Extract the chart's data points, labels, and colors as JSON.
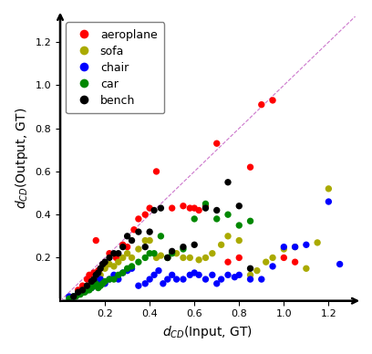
{
  "title": "",
  "xlabel": "$d_{CD}$(Input, GT)",
  "ylabel": "$d_{CD}$(Output, GT)",
  "xlim": [
    0,
    1.32
  ],
  "ylim": [
    0,
    1.32
  ],
  "xticks": [
    0.2,
    0.4,
    0.6,
    0.8,
    1.0,
    1.2
  ],
  "yticks": [
    0.2,
    0.4,
    0.6,
    0.8,
    1.0,
    1.2
  ],
  "diagonal_color": "#cc77cc",
  "categories": [
    "aeroplane",
    "sofa",
    "chair",
    "car",
    "bench"
  ],
  "colors": [
    "#ff0000",
    "#aaaa00",
    "#0000ff",
    "#008800",
    "#000000"
  ],
  "aeroplane_x": [
    0.08,
    0.1,
    0.12,
    0.13,
    0.15,
    0.16,
    0.17,
    0.18,
    0.2,
    0.22,
    0.25,
    0.28,
    0.3,
    0.33,
    0.35,
    0.38,
    0.4,
    0.43,
    0.5,
    0.55,
    0.58,
    0.6,
    0.62,
    0.65,
    0.7,
    0.75,
    0.8,
    0.85,
    0.9,
    0.95,
    1.0,
    1.05
  ],
  "aeroplane_y": [
    0.05,
    0.07,
    0.1,
    0.12,
    0.13,
    0.28,
    0.14,
    0.15,
    0.16,
    0.22,
    0.2,
    0.26,
    0.25,
    0.33,
    0.38,
    0.4,
    0.43,
    0.6,
    0.43,
    0.44,
    0.43,
    0.43,
    0.42,
    0.44,
    0.73,
    0.18,
    0.2,
    0.62,
    0.91,
    0.93,
    0.2,
    0.18
  ],
  "sofa_x": [
    0.08,
    0.1,
    0.12,
    0.14,
    0.16,
    0.18,
    0.2,
    0.22,
    0.24,
    0.26,
    0.28,
    0.3,
    0.32,
    0.35,
    0.38,
    0.4,
    0.43,
    0.45,
    0.48,
    0.52,
    0.55,
    0.58,
    0.62,
    0.65,
    0.68,
    0.72,
    0.75,
    0.8,
    0.85,
    0.88,
    0.92,
    0.95,
    1.0,
    1.05,
    1.1,
    1.15,
    1.2
  ],
  "sofa_y": [
    0.03,
    0.04,
    0.06,
    0.08,
    0.1,
    0.12,
    0.15,
    0.17,
    0.16,
    0.18,
    0.2,
    0.22,
    0.2,
    0.24,
    0.28,
    0.28,
    0.2,
    0.21,
    0.2,
    0.22,
    0.2,
    0.2,
    0.19,
    0.2,
    0.22,
    0.26,
    0.3,
    0.28,
    0.12,
    0.14,
    0.18,
    0.2,
    0.24,
    0.25,
    0.15,
    0.27,
    0.52
  ],
  "chair_x": [
    0.04,
    0.06,
    0.08,
    0.1,
    0.12,
    0.14,
    0.15,
    0.16,
    0.17,
    0.18,
    0.2,
    0.22,
    0.24,
    0.26,
    0.28,
    0.3,
    0.32,
    0.35,
    0.38,
    0.4,
    0.42,
    0.44,
    0.46,
    0.48,
    0.5,
    0.52,
    0.55,
    0.58,
    0.6,
    0.62,
    0.65,
    0.68,
    0.7,
    0.72,
    0.75,
    0.78,
    0.8,
    0.85,
    0.9,
    0.95,
    1.0,
    1.05,
    1.1,
    1.2,
    1.25
  ],
  "chair_y": [
    0.02,
    0.02,
    0.03,
    0.04,
    0.05,
    0.06,
    0.07,
    0.08,
    0.09,
    0.1,
    0.08,
    0.1,
    0.12,
    0.1,
    0.13,
    0.14,
    0.15,
    0.07,
    0.08,
    0.1,
    0.12,
    0.14,
    0.08,
    0.1,
    0.12,
    0.1,
    0.1,
    0.12,
    0.13,
    0.12,
    0.1,
    0.12,
    0.08,
    0.1,
    0.12,
    0.11,
    0.12,
    0.1,
    0.1,
    0.16,
    0.25,
    0.25,
    0.26,
    0.46,
    0.17
  ],
  "car_x": [
    0.04,
    0.06,
    0.07,
    0.08,
    0.09,
    0.1,
    0.11,
    0.12,
    0.13,
    0.14,
    0.15,
    0.16,
    0.17,
    0.18,
    0.19,
    0.2,
    0.22,
    0.24,
    0.26,
    0.28,
    0.3,
    0.32,
    0.35,
    0.38,
    0.4,
    0.42,
    0.45,
    0.48,
    0.5,
    0.55,
    0.6,
    0.65,
    0.7,
    0.75,
    0.8,
    0.85
  ],
  "car_y": [
    0.01,
    0.02,
    0.02,
    0.03,
    0.03,
    0.04,
    0.04,
    0.05,
    0.05,
    0.06,
    0.07,
    0.08,
    0.06,
    0.07,
    0.08,
    0.09,
    0.1,
    0.1,
    0.12,
    0.13,
    0.15,
    0.16,
    0.18,
    0.2,
    0.22,
    0.22,
    0.3,
    0.2,
    0.22,
    0.24,
    0.38,
    0.45,
    0.38,
    0.4,
    0.35,
    0.37
  ],
  "bench_x": [
    0.06,
    0.08,
    0.1,
    0.12,
    0.14,
    0.15,
    0.16,
    0.17,
    0.18,
    0.19,
    0.2,
    0.22,
    0.24,
    0.26,
    0.28,
    0.3,
    0.32,
    0.35,
    0.38,
    0.4,
    0.42,
    0.45,
    0.48,
    0.5,
    0.55,
    0.6,
    0.65,
    0.7,
    0.75,
    0.8,
    0.85
  ],
  "bench_y": [
    0.02,
    0.04,
    0.05,
    0.07,
    0.09,
    0.1,
    0.12,
    0.13,
    0.15,
    0.17,
    0.18,
    0.2,
    0.22,
    0.22,
    0.25,
    0.3,
    0.28,
    0.32,
    0.25,
    0.32,
    0.42,
    0.43,
    0.2,
    0.23,
    0.25,
    0.26,
    0.43,
    0.42,
    0.55,
    0.44,
    0.15
  ],
  "marker_size": 28,
  "figsize": [
    4.08,
    3.88
  ],
  "dpi": 100
}
